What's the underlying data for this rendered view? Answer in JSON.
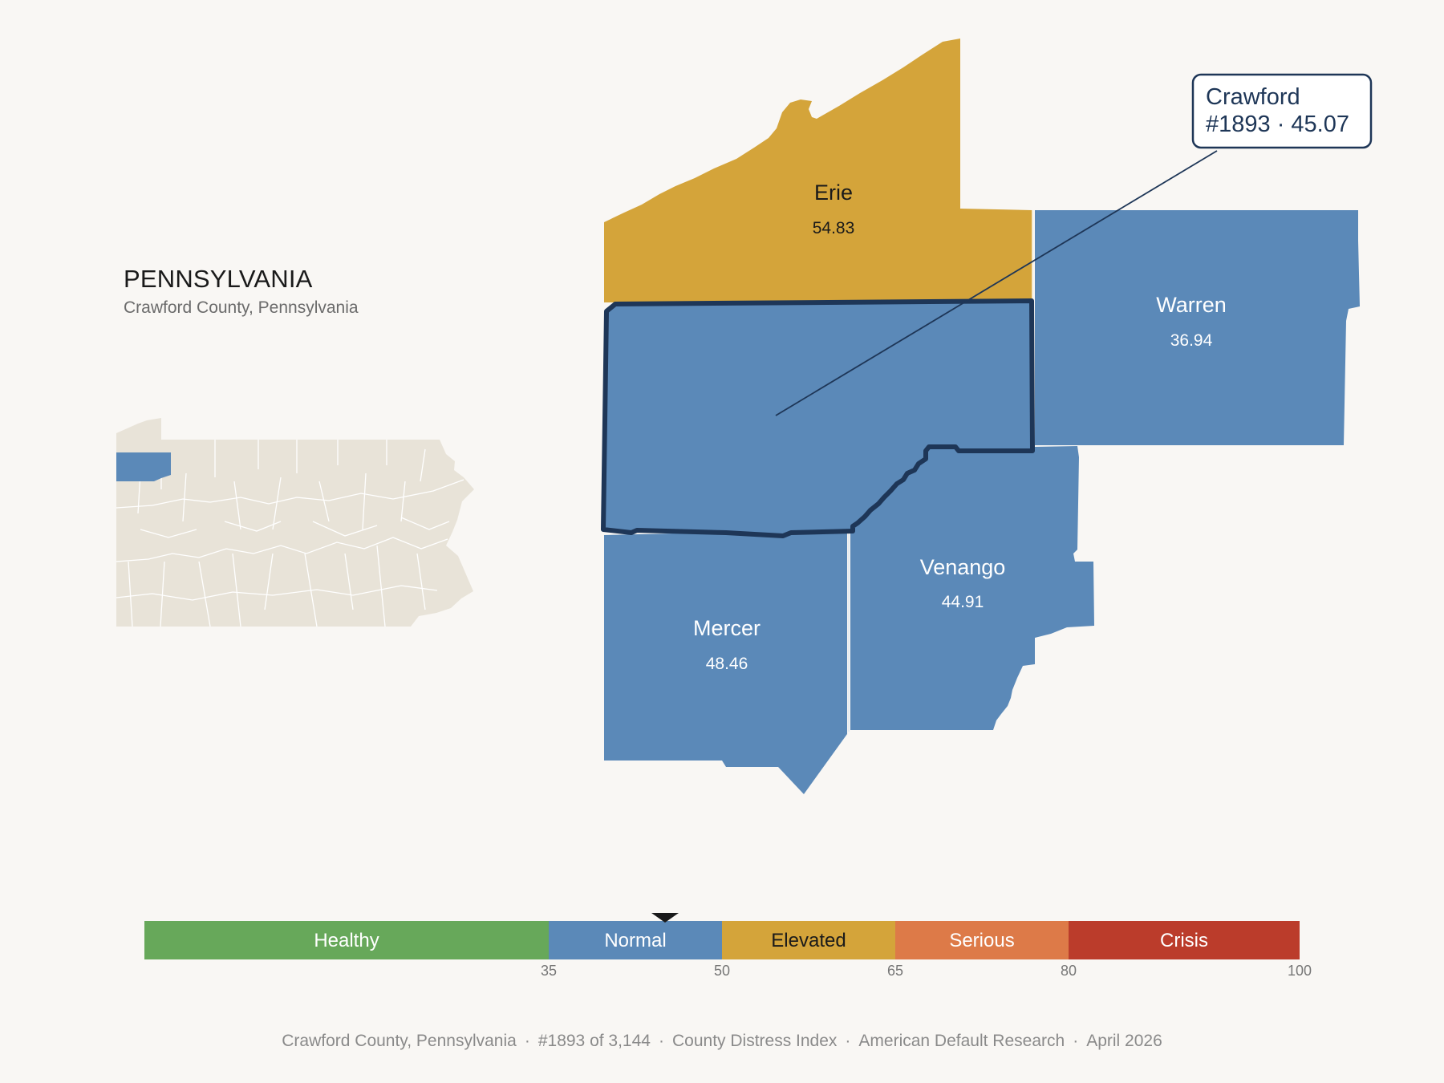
{
  "header": {
    "state": "PENNSYLVANIA",
    "subtitle": "Crawford County, Pennsylvania"
  },
  "focus": {
    "name": "Crawford",
    "rank_value": "#1893 · 45.07"
  },
  "counties": [
    {
      "id": "erie",
      "name": "Erie",
      "value": "54.83",
      "color": "#d4a43a"
    },
    {
      "id": "warren",
      "name": "Warren",
      "value": "36.94",
      "color": "#5b89b8"
    },
    {
      "id": "venango",
      "name": "Venango",
      "value": "44.91",
      "color": "#5b89b8"
    },
    {
      "id": "mercer",
      "name": "Mercer",
      "value": "48.46",
      "color": "#5b89b8"
    }
  ],
  "legend": {
    "bands": [
      {
        "label": "Healthy",
        "from": 0,
        "to": 35,
        "color": "#67a85a"
      },
      {
        "label": "Normal",
        "from": 35,
        "to": 50,
        "color": "#5b89b8"
      },
      {
        "label": "Elevated",
        "from": 50,
        "to": 65,
        "color": "#d4a43a"
      },
      {
        "label": "Serious",
        "from": 65,
        "to": 80,
        "color": "#dd7a48"
      },
      {
        "label": "Crisis",
        "from": 80,
        "to": 100,
        "color": "#bb3c2b"
      }
    ],
    "ticks": [
      "35",
      "50",
      "65",
      "80",
      "100"
    ],
    "marker_value": 45.07
  },
  "footer": {
    "county": "Crawford County, Pennsylvania",
    "rank": "#1893 of 3,144",
    "index": "County Distress Index",
    "source": "American Default Research",
    "date": "April 2026"
  },
  "colors": {
    "focus_fill": "#5b89b8",
    "focus_outline": "#1e3657",
    "inset_fill": "#e8e3d8",
    "inset_highlight": "#5b89b8"
  }
}
